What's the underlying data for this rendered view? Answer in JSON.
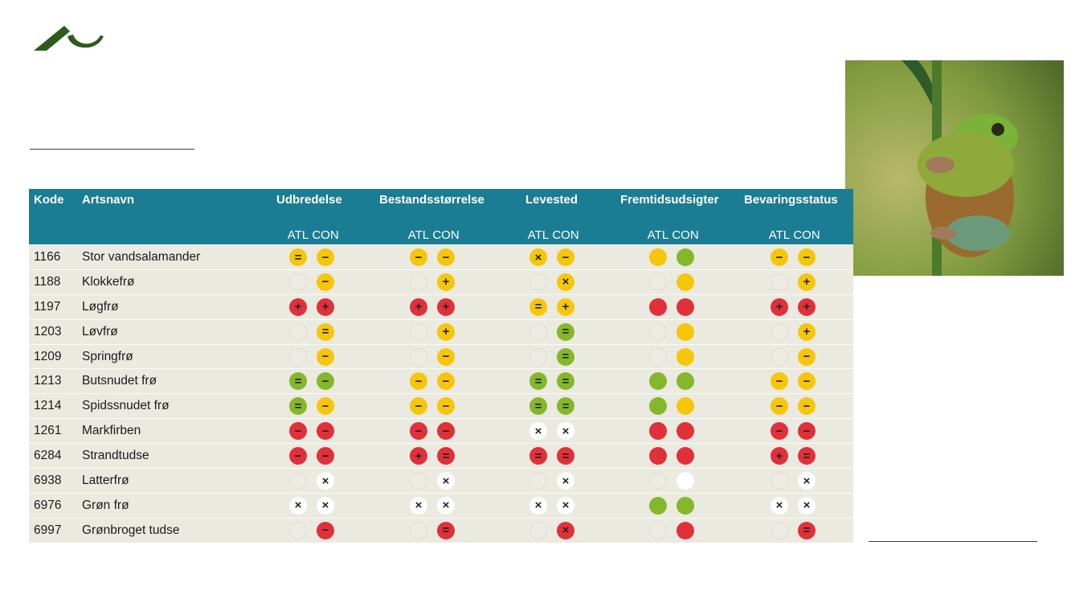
{
  "colors": {
    "header_bg": "#1b7d93",
    "row_bg": "#ebeae0",
    "yellow": "#f6c60a",
    "green": "#84b82a",
    "red": "#e0303a",
    "white": "#ffffff",
    "logo": "#2e5a1c"
  },
  "logo": {
    "icon": "university-logo-icon"
  },
  "photo": {
    "subject": "tree frog on plant stem",
    "icon": "frog-photo"
  },
  "table": {
    "headers": {
      "code": "Kode",
      "name": "Artsnavn",
      "groups": [
        "Udbredelse",
        "Bestandsstørrelse",
        "Levested",
        "Fremtidsudsigter",
        "Bevaringsstatus"
      ]
    },
    "sub": {
      "atl": "ATL",
      "con": "CON"
    },
    "rows": [
      {
        "code": "1166",
        "name": "Stor vandsalamander",
        "cells": [
          [
            "yellow",
            "="
          ],
          [
            "yellow",
            "−"
          ],
          [
            "yellow",
            "−"
          ],
          [
            "yellow",
            "−"
          ],
          [
            "yellow",
            "×"
          ],
          [
            "yellow",
            "−"
          ],
          [
            "yellow",
            ""
          ],
          [
            "green",
            ""
          ],
          [
            "yellow",
            "−"
          ],
          [
            "yellow",
            "−"
          ]
        ]
      },
      {
        "code": "1188",
        "name": "Klokkefrø",
        "cells": [
          [
            "empty",
            ""
          ],
          [
            "yellow",
            "−"
          ],
          [
            "empty",
            ""
          ],
          [
            "yellow",
            "+"
          ],
          [
            "empty",
            ""
          ],
          [
            "yellow",
            "×"
          ],
          [
            "empty",
            ""
          ],
          [
            "yellow",
            ""
          ],
          [
            "empty",
            ""
          ],
          [
            "yellow",
            "+"
          ]
        ]
      },
      {
        "code": "1197",
        "name": "Løgfrø",
        "cells": [
          [
            "red",
            "+"
          ],
          [
            "red",
            "+"
          ],
          [
            "red",
            "+"
          ],
          [
            "red",
            "+"
          ],
          [
            "yellow",
            "="
          ],
          [
            "yellow",
            "+"
          ],
          [
            "red",
            ""
          ],
          [
            "red",
            ""
          ],
          [
            "red",
            "+"
          ],
          [
            "red",
            "+"
          ]
        ]
      },
      {
        "code": "1203",
        "name": "Løvfrø",
        "cells": [
          [
            "empty",
            ""
          ],
          [
            "yellow",
            "="
          ],
          [
            "empty",
            ""
          ],
          [
            "yellow",
            "+"
          ],
          [
            "empty",
            ""
          ],
          [
            "green",
            "="
          ],
          [
            "empty",
            ""
          ],
          [
            "yellow",
            ""
          ],
          [
            "empty",
            ""
          ],
          [
            "yellow",
            "+"
          ]
        ]
      },
      {
        "code": "1209",
        "name": "Springfrø",
        "cells": [
          [
            "empty",
            ""
          ],
          [
            "yellow",
            "−"
          ],
          [
            "empty",
            ""
          ],
          [
            "yellow",
            "−"
          ],
          [
            "empty",
            ""
          ],
          [
            "green",
            "="
          ],
          [
            "empty",
            ""
          ],
          [
            "yellow",
            ""
          ],
          [
            "empty",
            ""
          ],
          [
            "yellow",
            "−"
          ]
        ]
      },
      {
        "code": "1213",
        "name": "Butsnudet frø",
        "cells": [
          [
            "green",
            "="
          ],
          [
            "green",
            "−"
          ],
          [
            "yellow",
            "−"
          ],
          [
            "yellow",
            "−"
          ],
          [
            "green",
            "="
          ],
          [
            "green",
            "="
          ],
          [
            "green",
            ""
          ],
          [
            "green",
            ""
          ],
          [
            "yellow",
            "−"
          ],
          [
            "yellow",
            "−"
          ]
        ]
      },
      {
        "code": "1214",
        "name": "Spidssnudet frø",
        "cells": [
          [
            "green",
            "="
          ],
          [
            "yellow",
            "−"
          ],
          [
            "yellow",
            "−"
          ],
          [
            "yellow",
            "−"
          ],
          [
            "green",
            "="
          ],
          [
            "green",
            "="
          ],
          [
            "green",
            ""
          ],
          [
            "yellow",
            ""
          ],
          [
            "yellow",
            "−"
          ],
          [
            "yellow",
            "−"
          ]
        ]
      },
      {
        "code": "1261",
        "name": "Markfirben",
        "cells": [
          [
            "red",
            "−"
          ],
          [
            "red",
            "−"
          ],
          [
            "red",
            "−"
          ],
          [
            "red",
            "−"
          ],
          [
            "white",
            "×"
          ],
          [
            "white",
            "×"
          ],
          [
            "red",
            ""
          ],
          [
            "red",
            ""
          ],
          [
            "red",
            "−"
          ],
          [
            "red",
            "−"
          ]
        ]
      },
      {
        "code": "6284",
        "name": "Strandtudse",
        "cells": [
          [
            "red",
            "−"
          ],
          [
            "red",
            "−"
          ],
          [
            "red",
            "+"
          ],
          [
            "red",
            "="
          ],
          [
            "red",
            "="
          ],
          [
            "red",
            "="
          ],
          [
            "red",
            ""
          ],
          [
            "red",
            ""
          ],
          [
            "red",
            "+"
          ],
          [
            "red",
            "="
          ]
        ]
      },
      {
        "code": "6938",
        "name": "Latterfrø",
        "cells": [
          [
            "empty",
            ""
          ],
          [
            "white",
            "×"
          ],
          [
            "empty",
            ""
          ],
          [
            "white",
            "×"
          ],
          [
            "empty",
            ""
          ],
          [
            "white",
            "×"
          ],
          [
            "empty",
            ""
          ],
          [
            "white",
            ""
          ],
          [
            "empty",
            ""
          ],
          [
            "white",
            "×"
          ]
        ]
      },
      {
        "code": "6976",
        "name": "Grøn frø",
        "cells": [
          [
            "white",
            "×"
          ],
          [
            "white",
            "×"
          ],
          [
            "white",
            "×"
          ],
          [
            "white",
            "×"
          ],
          [
            "white",
            "×"
          ],
          [
            "white",
            "×"
          ],
          [
            "green",
            ""
          ],
          [
            "green",
            ""
          ],
          [
            "white",
            "×"
          ],
          [
            "white",
            "×"
          ]
        ]
      },
      {
        "code": "6997",
        "name": "Grønbroget tudse",
        "cells": [
          [
            "empty",
            ""
          ],
          [
            "red",
            "−"
          ],
          [
            "empty",
            ""
          ],
          [
            "red",
            "="
          ],
          [
            "empty",
            ""
          ],
          [
            "red",
            "×"
          ],
          [
            "empty",
            ""
          ],
          [
            "red",
            ""
          ],
          [
            "empty",
            ""
          ],
          [
            "red",
            "="
          ]
        ]
      }
    ]
  }
}
